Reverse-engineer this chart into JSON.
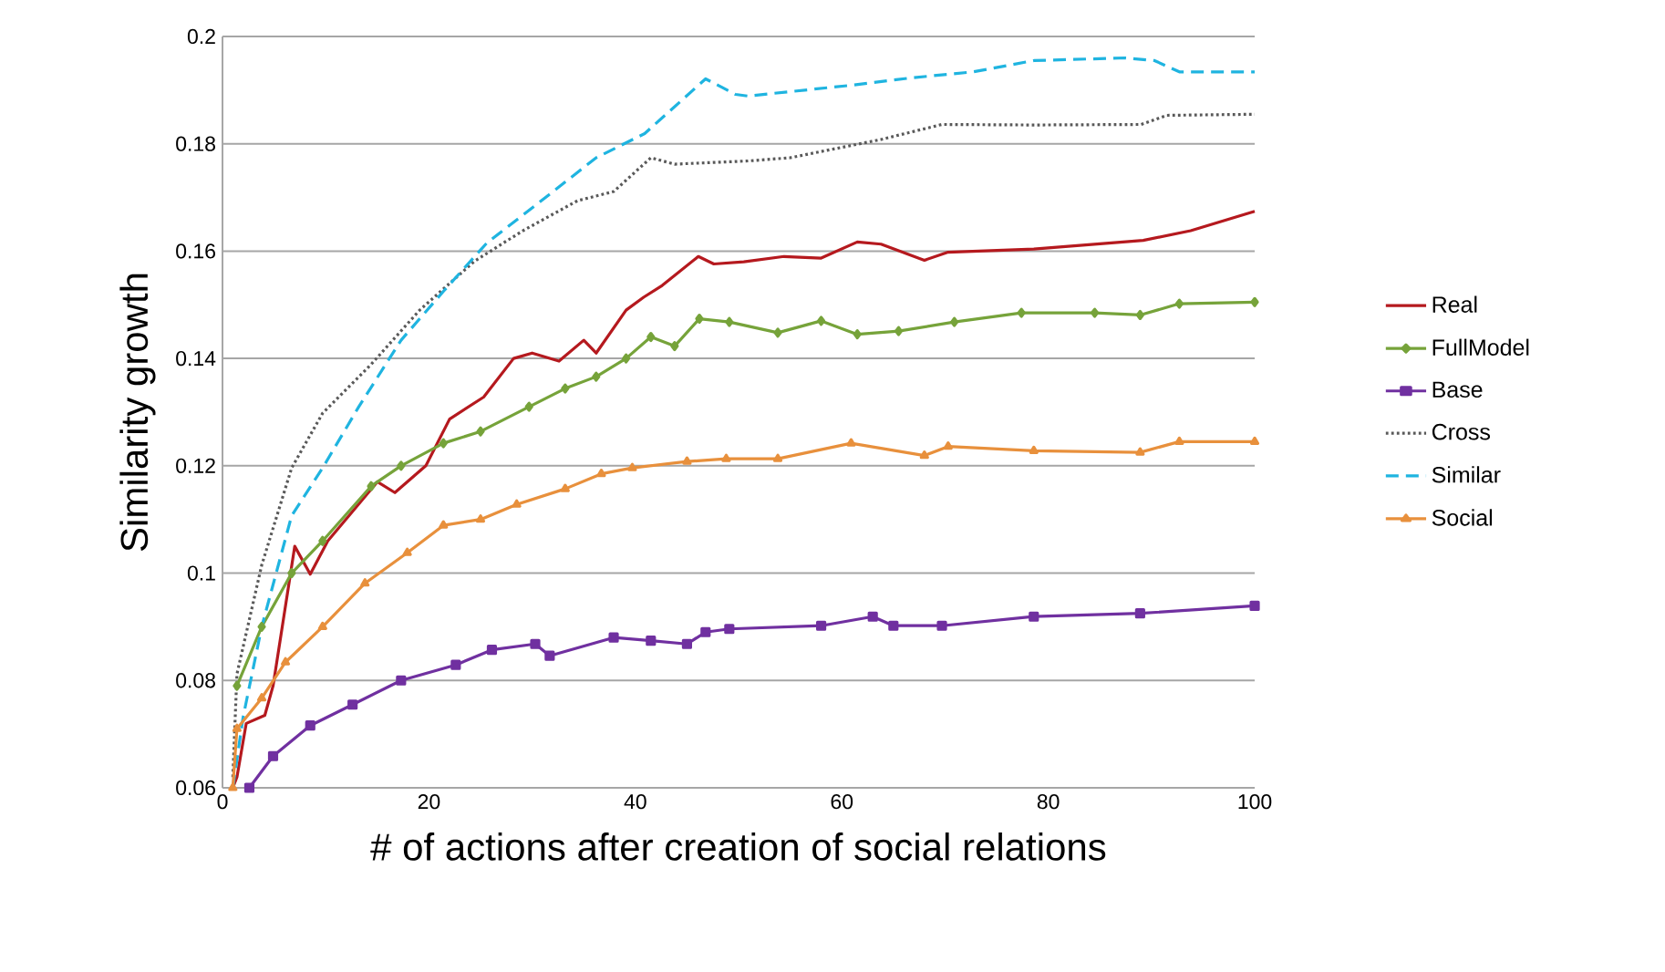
{
  "chart_data": {
    "type": "line",
    "xlabel": "# of actions after creation of social relations",
    "ylabel": "Similarity growth",
    "xlim": [
      0,
      100
    ],
    "ylim": [
      0.06,
      0.2
    ],
    "xticks": [
      0,
      20,
      40,
      60,
      80,
      100
    ],
    "yticks": [
      0.06,
      0.08,
      0.1,
      0.12,
      0.14,
      0.16,
      0.18,
      0.2
    ],
    "grid": "y",
    "legend": "right",
    "series": [
      {
        "name": "Real",
        "color": "#b5191e",
        "marker": "none",
        "line_style": "solid",
        "x": [
          1,
          1.4,
          2.3,
          4.1,
          4.9,
          7,
          8.5,
          10.2,
          15,
          16.7,
          19.7,
          22,
          25.3,
          28.2,
          30,
          32.6,
          35,
          36.2,
          39.1,
          40.8,
          42.6,
          46.1,
          47.6,
          50.5,
          54.4,
          58,
          61.5,
          63.8,
          68,
          70.3,
          78.6,
          89.2,
          93.8,
          100
        ],
        "values": [
          0.06,
          0.062,
          0.072,
          0.0735,
          0.079,
          0.105,
          0.0998,
          0.106,
          0.117,
          0.115,
          0.12,
          0.1287,
          0.1328,
          0.14,
          0.141,
          0.1395,
          0.1434,
          0.141,
          0.149,
          0.1514,
          0.1536,
          0.159,
          0.1576,
          0.158,
          0.159,
          0.1587,
          0.1617,
          0.1613,
          0.1583,
          0.1598,
          0.1604,
          0.162,
          0.1638,
          0.1674
        ]
      },
      {
        "name": "FullModel",
        "color": "#76a33a",
        "marker": "diamond",
        "line_style": "solid",
        "x": [
          1.4,
          3.8,
          6.7,
          9.7,
          14.4,
          17.3,
          21.4,
          25,
          29.7,
          33.2,
          36.2,
          39.1,
          41.5,
          43.8,
          46.2,
          49.1,
          53.8,
          58,
          61.5,
          65.5,
          70.9,
          77.4,
          84.5,
          88.9,
          92.7,
          100
        ],
        "values": [
          0.079,
          0.09,
          0.1,
          0.106,
          0.1162,
          0.12,
          0.1242,
          0.1264,
          0.131,
          0.1344,
          0.1366,
          0.14,
          0.144,
          0.1423,
          0.1474,
          0.1468,
          0.1448,
          0.147,
          0.1445,
          0.1451,
          0.1468,
          0.1485,
          0.1485,
          0.1481,
          0.1502,
          0.1505
        ]
      },
      {
        "name": "Base",
        "color": "#7030a0",
        "marker": "square",
        "line_style": "solid",
        "x": [
          2.6,
          4.9,
          8.5,
          12.6,
          17.3,
          22.6,
          26.1,
          30.3,
          31.7,
          37.9,
          41.5,
          45,
          46.8,
          49.1,
          58,
          63,
          65,
          69.7,
          78.6,
          88.9,
          100
        ],
        "values": [
          0.06,
          0.0659,
          0.0716,
          0.0755,
          0.08,
          0.0829,
          0.0857,
          0.0868,
          0.0846,
          0.088,
          0.0874,
          0.0868,
          0.089,
          0.0896,
          0.0902,
          0.0919,
          0.0902,
          0.0902,
          0.0919,
          0.0925,
          0.0939
        ]
      },
      {
        "name": "Cross",
        "color": "#595959",
        "marker": "none",
        "line_style": "dotted",
        "x": [
          1,
          1.4,
          3.8,
          6.7,
          9.7,
          14.4,
          19.1,
          24.4,
          29.1,
          34.4,
          37.9,
          41.5,
          43.8,
          50.9,
          55,
          63.8,
          69.7,
          78.6,
          89,
          91.5,
          100
        ],
        "values": [
          0.062,
          0.0812,
          0.1015,
          0.1196,
          0.1298,
          0.1389,
          0.149,
          0.1581,
          0.1638,
          0.1694,
          0.1711,
          0.1774,
          0.1762,
          0.1768,
          0.1774,
          0.1808,
          0.1836,
          0.1835,
          0.1836,
          0.1853,
          0.1855
        ]
      },
      {
        "name": "Similar",
        "color": "#1fb4e0",
        "marker": "none",
        "line_style": "dashed",
        "x": [
          1,
          2,
          3.8,
          6.7,
          9.7,
          13.2,
          17.3,
          21.4,
          25.6,
          30.9,
          36.2,
          40.9,
          46.8,
          49.7,
          50.9,
          60.9,
          66.8,
          72.7,
          78.6,
          87.4,
          90.3,
          92.7,
          100
        ],
        "values": [
          0.06,
          0.0732,
          0.09,
          0.1107,
          0.1196,
          0.131,
          0.1434,
          0.1525,
          0.1615,
          0.1694,
          0.1774,
          0.1819,
          0.1921,
          0.1892,
          0.1889,
          0.1909,
          0.1923,
          0.1934,
          0.1955,
          0.196,
          0.1955,
          0.1934,
          0.1934
        ]
      },
      {
        "name": "Social",
        "color": "#e8903c",
        "marker": "triangle",
        "line_style": "solid",
        "x": [
          1,
          1.4,
          3.8,
          6.1,
          9.7,
          13.8,
          17.9,
          21.4,
          25,
          28.5,
          33.2,
          36.7,
          39.7,
          45,
          48.8,
          53.8,
          60.9,
          68,
          70.3,
          78.6,
          88.9,
          92.7,
          100
        ],
        "values": [
          0.06,
          0.071,
          0.0767,
          0.0834,
          0.09,
          0.0981,
          0.1038,
          0.1089,
          0.11,
          0.1128,
          0.1157,
          0.1185,
          0.1196,
          0.1208,
          0.1213,
          0.1213,
          0.1242,
          0.1219,
          0.1236,
          0.1228,
          0.1225,
          0.1245,
          0.1245
        ]
      }
    ]
  }
}
